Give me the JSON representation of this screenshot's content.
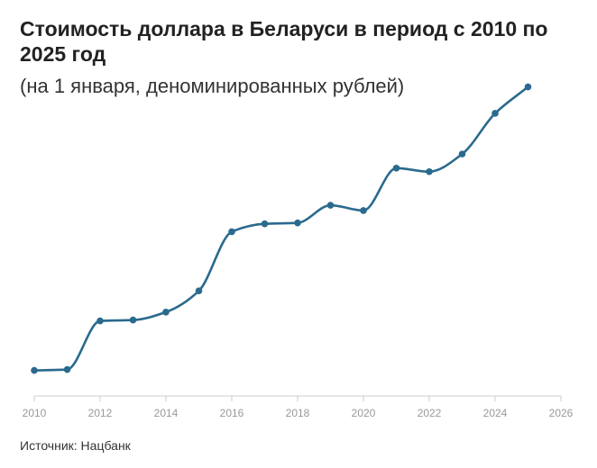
{
  "header": {
    "title": "Стоимость доллара в Беларуси в период с 2010 по 2025 год",
    "subtitle": "(на 1 января, деноминированных рублей)"
  },
  "footer": {
    "source": "Источник: Нацбанк"
  },
  "chart_data": {
    "type": "line",
    "title": "Стоимость доллара в Беларуси в период с 2010 по 2025 год",
    "subtitle": "(на 1 января, деноминированных рублей)",
    "xlabel": "",
    "ylabel": "",
    "x": [
      2010,
      2011,
      2012,
      2013,
      2014,
      2015,
      2016,
      2017,
      2018,
      2019,
      2020,
      2021,
      2022,
      2023,
      2024,
      2025
    ],
    "series": [
      {
        "values": [
          0.29,
          0.3,
          0.85,
          0.86,
          0.95,
          1.19,
          1.86,
          1.95,
          1.96,
          2.16,
          2.1,
          2.58,
          2.54,
          2.74,
          3.2,
          3.5
        ],
        "color": "#2a6a8e"
      }
    ],
    "xlim": [
      2010,
      2026
    ],
    "ylim": [
      0,
      3.75
    ],
    "x_ticks": [
      "2010",
      "2012",
      "2014",
      "2016",
      "2018",
      "2020",
      "2022",
      "2024",
      "2026"
    ],
    "grid": false,
    "y_axis_labels_shown": false,
    "line_style": "smooth",
    "markers": true
  }
}
